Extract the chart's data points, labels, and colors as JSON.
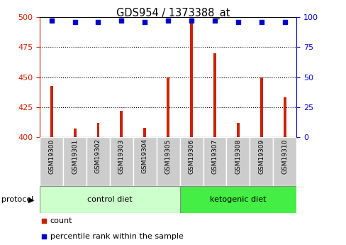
{
  "title": "GDS954 / 1373388_at",
  "samples": [
    "GSM19300",
    "GSM19301",
    "GSM19302",
    "GSM19303",
    "GSM19304",
    "GSM19305",
    "GSM19306",
    "GSM19307",
    "GSM19308",
    "GSM19309",
    "GSM19310"
  ],
  "counts": [
    443,
    407,
    412,
    422,
    408,
    450,
    498,
    470,
    412,
    450,
    433
  ],
  "percentile_ranks": [
    97,
    96,
    96,
    97,
    96,
    97,
    97,
    97,
    96,
    96,
    96
  ],
  "ylim_left": [
    400,
    500
  ],
  "ylim_right": [
    0,
    100
  ],
  "yticks_left": [
    400,
    425,
    450,
    475,
    500
  ],
  "yticks_right": [
    0,
    25,
    50,
    75,
    100
  ],
  "bar_color": "#cc2200",
  "dot_color": "#0000cc",
  "control_bg": "#ccffcc",
  "ketogenic_bg": "#44ee44",
  "sample_box_bg": "#cccccc",
  "legend_count_label": "count",
  "legend_pct_label": "percentile rank within the sample",
  "bar_width": 0.12,
  "n_control": 6,
  "n_ketogenic": 5
}
